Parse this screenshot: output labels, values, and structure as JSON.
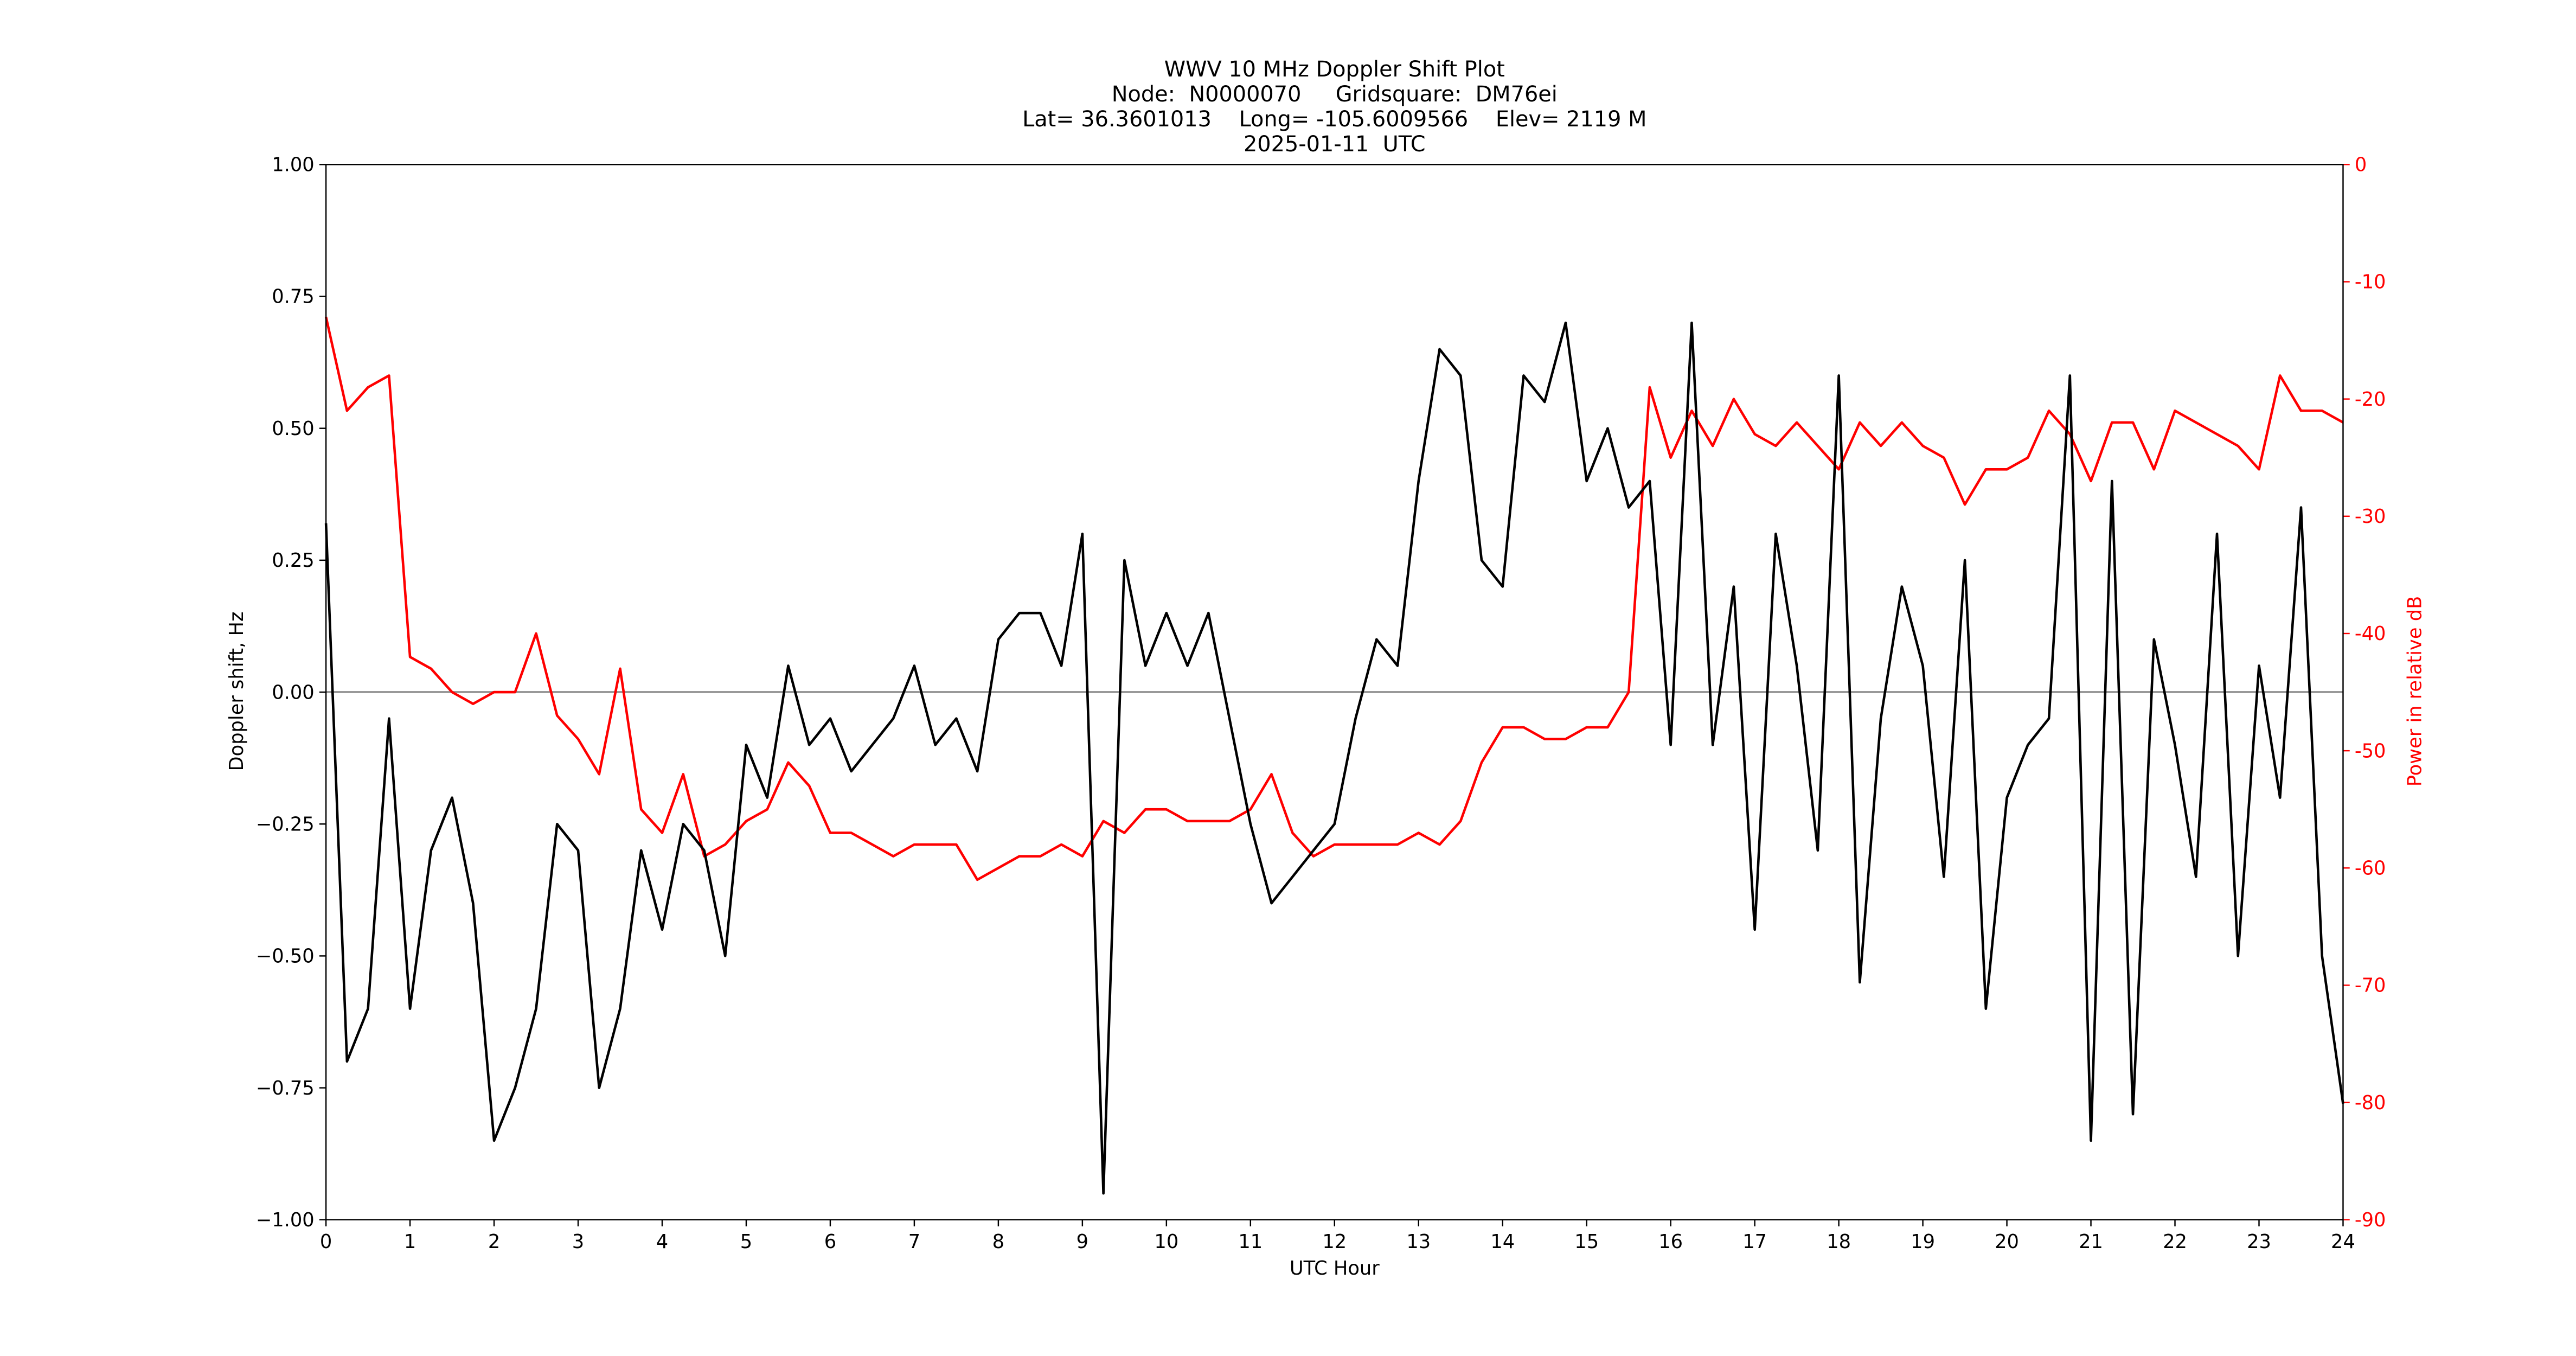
{
  "chart_data": {
    "type": "line",
    "title": [
      "WWV 10 MHz Doppler Shift Plot",
      "Node:  N0000070     Gridsquare:  DM76ei",
      "Lat= 36.3601013    Long= -105.6009566    Elev= 2119 M",
      "2025-01-11  UTC"
    ],
    "xlabel": "UTC Hour",
    "ylabel": "Doppler shift, Hz",
    "y2label": "Power in relative dB",
    "x": [
      0,
      0.25,
      0.5,
      0.75,
      1,
      1.25,
      1.5,
      1.75,
      2,
      2.25,
      2.5,
      2.75,
      3,
      3.25,
      3.5,
      3.75,
      4,
      4.25,
      4.5,
      4.75,
      5,
      5.25,
      5.5,
      5.75,
      6,
      6.25,
      6.5,
      6.75,
      7,
      7.25,
      7.5,
      7.75,
      8,
      8.25,
      8.5,
      8.75,
      9,
      9.25,
      9.5,
      9.75,
      10,
      10.25,
      10.5,
      10.75,
      11,
      11.25,
      11.5,
      11.75,
      12,
      12.25,
      12.5,
      12.75,
      13,
      13.25,
      13.5,
      13.75,
      14,
      14.25,
      14.5,
      14.75,
      15,
      15.25,
      15.5,
      15.75,
      16,
      16.25,
      16.5,
      16.75,
      17,
      17.25,
      17.5,
      17.75,
      18,
      18.25,
      18.5,
      18.75,
      19,
      19.25,
      19.5,
      19.75,
      20,
      20.25,
      20.5,
      20.75,
      21,
      21.25,
      21.5,
      21.75,
      22,
      22.25,
      22.5,
      22.75,
      23,
      23.25,
      23.5,
      23.75,
      24
    ],
    "series": [
      {
        "name": "Doppler shift",
        "color": "#000000",
        "axis": "y",
        "values": [
          0.32,
          -0.7,
          -0.6,
          -0.05,
          -0.6,
          -0.3,
          -0.2,
          -0.4,
          -0.85,
          -0.75,
          -0.6,
          -0.25,
          -0.3,
          -0.75,
          -0.6,
          -0.3,
          -0.45,
          -0.25,
          -0.3,
          -0.5,
          -0.1,
          -0.2,
          0.05,
          -0.1,
          -0.05,
          -0.15,
          -0.1,
          -0.05,
          0.05,
          -0.1,
          -0.05,
          -0.15,
          0.1,
          0.15,
          0.15,
          0.05,
          0.3,
          -0.95,
          0.25,
          0.05,
          0.15,
          0.05,
          0.15,
          -0.05,
          -0.25,
          -0.4,
          -0.35,
          -0.3,
          -0.25,
          -0.05,
          0.1,
          0.05,
          0.4,
          0.65,
          0.6,
          0.25,
          0.2,
          0.6,
          0.55,
          0.7,
          0.4,
          0.5,
          0.35,
          0.4,
          -0.1,
          0.7,
          -0.1,
          0.2,
          -0.45,
          0.3,
          0.05,
          -0.3,
          0.6,
          -0.55,
          -0.05,
          0.2,
          0.05,
          -0.35,
          0.25,
          -0.6,
          -0.2,
          -0.1,
          -0.05,
          0.6,
          -0.85,
          0.4,
          -0.8,
          0.1,
          -0.1,
          -0.35,
          0.3,
          -0.5,
          0.05,
          -0.2,
          0.35,
          -0.5,
          -0.78
        ]
      },
      {
        "name": "Power",
        "color": "#ff0000",
        "axis": "y2",
        "values": [
          -13,
          -21,
          -19,
          -18,
          -42,
          -43,
          -45,
          -46,
          -45,
          -45,
          -40,
          -47,
          -49,
          -52,
          -43,
          -55,
          -57,
          -52,
          -59,
          -58,
          -56,
          -55,
          -51,
          -53,
          -57,
          -57,
          -58,
          -59,
          -58,
          -58,
          -58,
          -61,
          -60,
          -59,
          -59,
          -58,
          -59,
          -56,
          -57,
          -55,
          -55,
          -56,
          -56,
          -56,
          -55,
          -52,
          -57,
          -59,
          -58,
          -58,
          -58,
          -58,
          -57,
          -58,
          -56,
          -51,
          -48,
          -48,
          -49,
          -49,
          -48,
          -48,
          -45,
          -19,
          -25,
          -21,
          -24,
          -20,
          -23,
          -24,
          -22,
          -24,
          -26,
          -22,
          -24,
          -22,
          -24,
          -25,
          -29,
          -26,
          -26,
          -25,
          -21,
          -23,
          -27,
          -22,
          -22,
          -26,
          -21,
          -22,
          -23,
          -24,
          -26,
          -18,
          -21,
          -21,
          -22
        ]
      }
    ],
    "xlim": [
      0,
      24
    ],
    "xticks": [
      0,
      1,
      2,
      3,
      4,
      5,
      6,
      7,
      8,
      9,
      10,
      11,
      12,
      13,
      14,
      15,
      16,
      17,
      18,
      19,
      20,
      21,
      22,
      23,
      24
    ],
    "ylim": [
      -1,
      1
    ],
    "yticks": [
      {
        "value": -1,
        "label": "−1.00"
      },
      {
        "value": -0.75,
        "label": "−0.75"
      },
      {
        "value": -0.5,
        "label": "−0.50"
      },
      {
        "value": -0.25,
        "label": "−0.25"
      },
      {
        "value": 0,
        "label": "0.00"
      },
      {
        "value": 0.25,
        "label": "0.25"
      },
      {
        "value": 0.5,
        "label": "0.50"
      },
      {
        "value": 0.75,
        "label": "0.75"
      },
      {
        "value": 1,
        "label": "1.00"
      }
    ],
    "y2lim": [
      -90,
      0
    ],
    "y2ticks": [
      -90,
      -80,
      -70,
      -60,
      -50,
      -40,
      -30,
      -20,
      -10,
      0
    ],
    "y2color": "#ff0000",
    "hline": 0,
    "hline_color": "#999999"
  }
}
